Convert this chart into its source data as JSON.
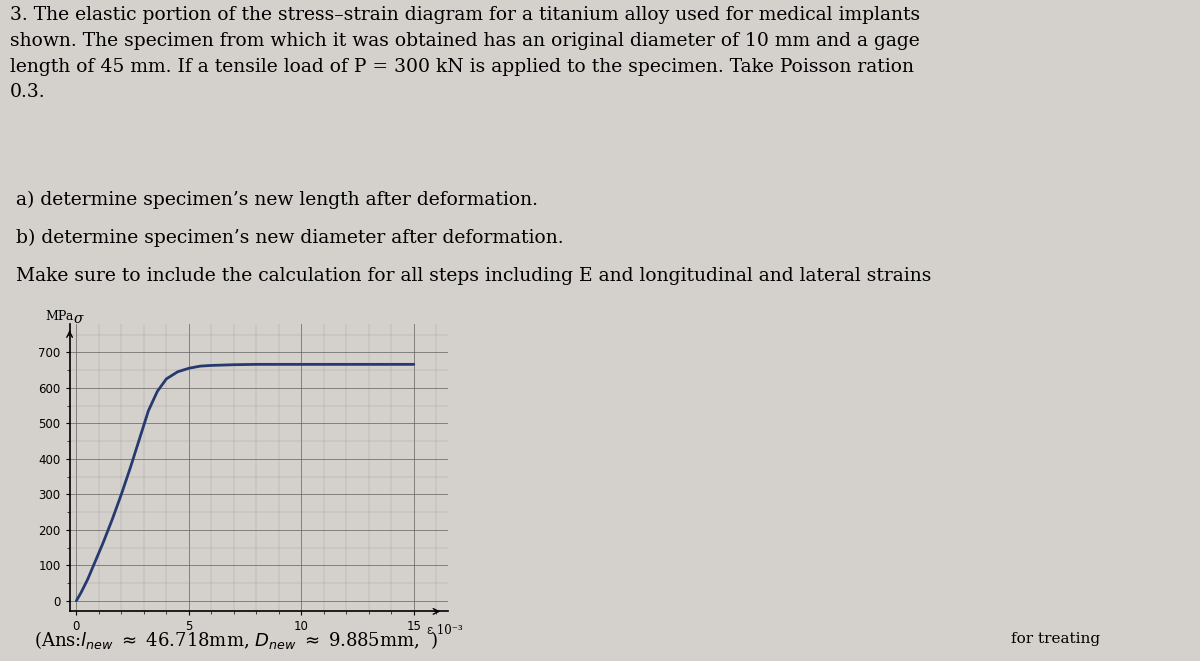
{
  "background_color": "#d4d0cc",
  "text_para1": "3. The elastic portion of the stress–strain diagram for a titanium alloy used for medical implants\nshown. The specimen from which it was obtained has an original diameter of 10 mm and a gage\nlength of 45 mm. If a tensile load of P = 300 kN is applied to the specimen. Take Poisson ration\n0.3.",
  "text_para2a": " a) determine specimen’s new length after deformation.",
  "text_para2b": " b) determine specimen’s new diameter after deformation.",
  "text_para2c": " Make sure to include the calculation for all steps including E and longitudinal and lateral strains",
  "mpa_label": "MPa",
  "sigma_label": "σ",
  "epsilon_label": "ε 10⁻³",
  "yticks": [
    100,
    200,
    300,
    400,
    500,
    600,
    700
  ],
  "xticks": [
    5,
    10,
    15
  ],
  "xlim": [
    -0.3,
    16.5
  ],
  "ylim": [
    -30,
    780
  ],
  "curve_color": "#253a6e",
  "curve_x": [
    0,
    0.2,
    0.5,
    0.8,
    1.2,
    1.6,
    2.0,
    2.4,
    2.8,
    3.2,
    3.6,
    4.0,
    4.5,
    5.0,
    5.5,
    6.0,
    7.0,
    8.0,
    9.0,
    10.0,
    11.0,
    12.0,
    13.0,
    14.0,
    15.0
  ],
  "curve_y": [
    0,
    22,
    60,
    105,
    165,
    230,
    300,
    375,
    455,
    535,
    590,
    625,
    645,
    655,
    661,
    663,
    665,
    666,
    666,
    666,
    666,
    666,
    666,
    666,
    666
  ],
  "grid_minor_color": "#999999",
  "grid_major_color": "#666666",
  "ans_line": "(Ans:$l_{new}$ $\\approx$ 46.718mm, $D_{new}$ $\\approx$ 9.885mm,  )",
  "footer_right": "for treating"
}
